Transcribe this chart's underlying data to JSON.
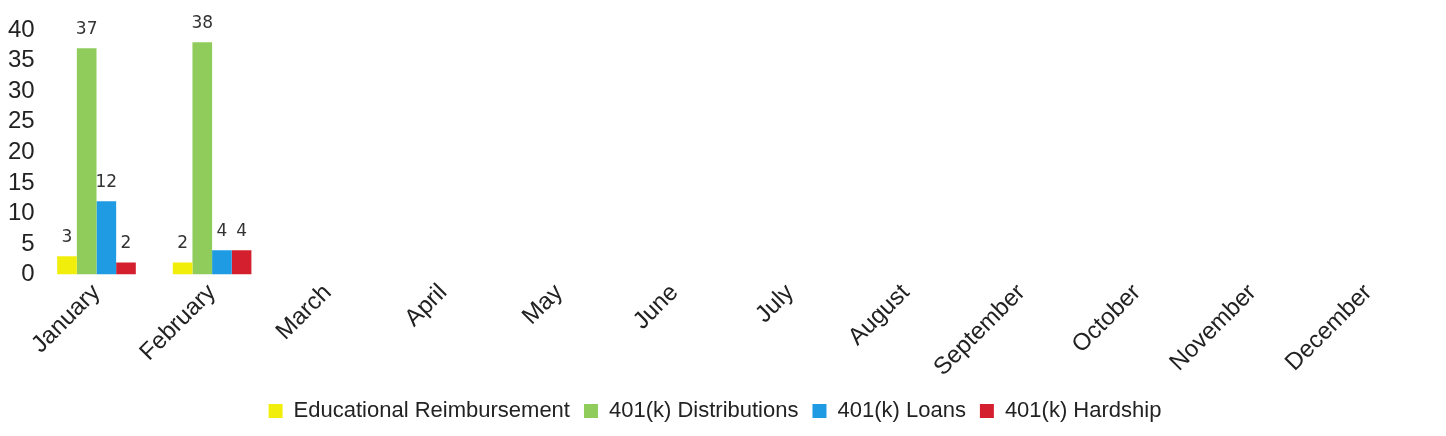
{
  "chart_data": {
    "type": "bar",
    "categories": [
      "January",
      "February",
      "March",
      "April",
      "May",
      "June",
      "July",
      "August",
      "September",
      "October",
      "November",
      "December"
    ],
    "series": [
      {
        "name": "Educational Reimbursement",
        "color": "#f2ee0c",
        "values": [
          3,
          2,
          null,
          null,
          null,
          null,
          null,
          null,
          null,
          null,
          null,
          null
        ]
      },
      {
        "name": "401(k) Distributions",
        "color": "#8fcc5c",
        "values": [
          37,
          38,
          null,
          null,
          null,
          null,
          null,
          null,
          null,
          null,
          null,
          null
        ]
      },
      {
        "name": "401(k) Loans",
        "color": "#1e9be3",
        "values": [
          12,
          4,
          null,
          null,
          null,
          null,
          null,
          null,
          null,
          null,
          null,
          null
        ]
      },
      {
        "name": "401(k) Hardship",
        "color": "#d4202e",
        "values": [
          2,
          4,
          null,
          null,
          null,
          null,
          null,
          null,
          null,
          null,
          null,
          null
        ]
      }
    ],
    "ylim": [
      0,
      40
    ],
    "yticks": [
      0,
      5,
      10,
      15,
      20,
      25,
      30,
      35,
      40
    ],
    "grid": false,
    "legend": "bottom",
    "data_labels": true
  }
}
